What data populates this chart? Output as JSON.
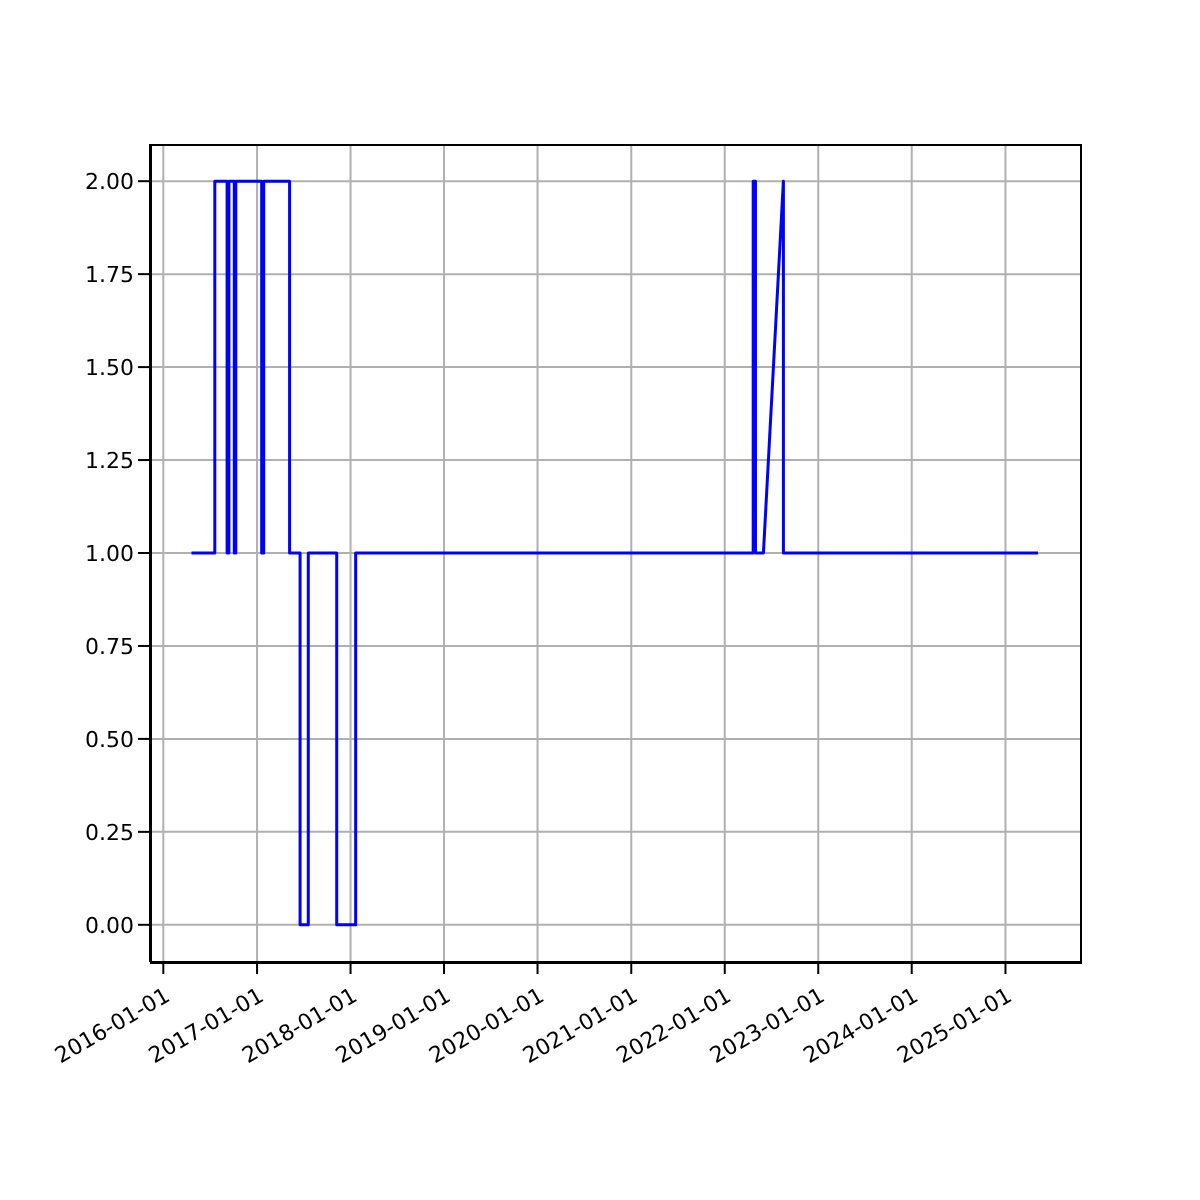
{
  "chart_data": {
    "type": "line",
    "x": [
      "2016-04-20",
      "2016-07-20",
      "2016-07-20",
      "2016-09-06",
      "2016-09-06",
      "2016-09-13",
      "2016-09-13",
      "2016-10-04",
      "2016-10-04",
      "2016-10-10",
      "2016-10-10",
      "2017-01-19",
      "2017-01-19",
      "2017-01-27",
      "2017-01-27",
      "2017-05-08",
      "2017-05-08",
      "2017-06-18",
      "2017-06-18",
      "2017-07-20",
      "2017-07-20",
      "2017-11-08",
      "2017-11-08",
      "2018-01-21",
      "2018-01-21",
      "2022-04-22",
      "2022-04-22",
      "2022-05-01",
      "2022-05-01",
      "2022-06-01",
      "2022-08-18",
      "2022-08-18",
      "2025-05-08"
    ],
    "series": [
      {
        "color": "#0000ff",
        "values": [
          1,
          1,
          2,
          2,
          1,
          1,
          2,
          2,
          1,
          1,
          2,
          2,
          1,
          1,
          2,
          2,
          1,
          1,
          0,
          0,
          1,
          1,
          0,
          0,
          1,
          1,
          2,
          2,
          1,
          1,
          2,
          1,
          1
        ]
      }
    ],
    "xlim": [
      "2015-11-10",
      "2025-10-19"
    ],
    "ylim": [
      -0.1,
      2.1
    ],
    "xticks": [
      "2016-01-01",
      "2017-01-01",
      "2018-01-01",
      "2019-01-01",
      "2020-01-01",
      "2021-01-01",
      "2022-01-01",
      "2023-01-01",
      "2024-01-01",
      "2025-01-01"
    ],
    "yticks": [
      {
        "value": 0,
        "label": "0.00"
      },
      {
        "value": 0.25,
        "label": "0.25"
      },
      {
        "value": 0.5,
        "label": "0.50"
      },
      {
        "value": 0.75,
        "label": "0.75"
      },
      {
        "value": 1,
        "label": "1.00"
      },
      {
        "value": 1.25,
        "label": "1.25"
      },
      {
        "value": 1.5,
        "label": "1.50"
      },
      {
        "value": 1.75,
        "label": "1.75"
      },
      {
        "value": 2,
        "label": "2.00"
      }
    ],
    "grid": true
  }
}
